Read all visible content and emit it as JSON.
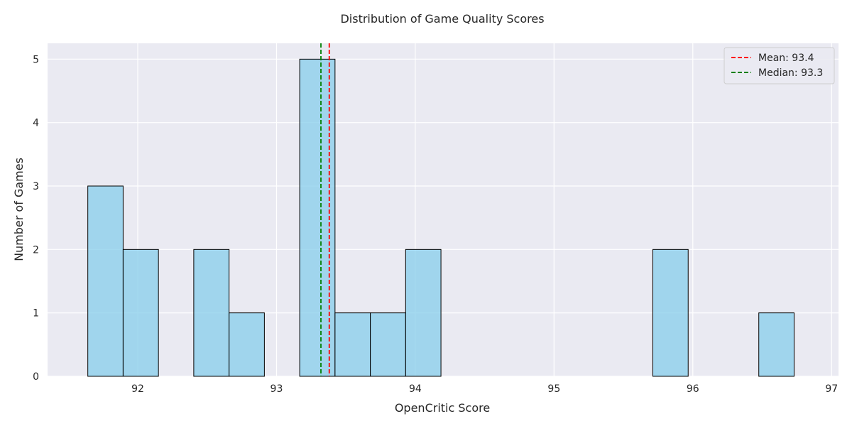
{
  "chart_data": {
    "type": "bar",
    "title": "Distribution of Game Quality Scores",
    "xlabel": "OpenCritic Score",
    "ylabel": "Number of Games",
    "xlim": [
      91.35,
      97.05
    ],
    "ylim": [
      0,
      5.25
    ],
    "xticks": [
      92,
      93,
      94,
      95,
      96,
      97
    ],
    "yticks": [
      0,
      1,
      2,
      3,
      4,
      5
    ],
    "grid": true,
    "legend_position": "top-right",
    "bin_width": 0.2545,
    "bars": [
      {
        "x0": 91.64,
        "count": 3
      },
      {
        "x0": 91.8945,
        "count": 2
      },
      {
        "x0": 92.149,
        "count": 0
      },
      {
        "x0": 92.4035,
        "count": 2
      },
      {
        "x0": 92.658,
        "count": 1
      },
      {
        "x0": 92.9125,
        "count": 0
      },
      {
        "x0": 93.167,
        "count": 5
      },
      {
        "x0": 93.4215,
        "count": 1
      },
      {
        "x0": 93.676,
        "count": 1
      },
      {
        "x0": 93.9305,
        "count": 2
      },
      {
        "x0": 94.185,
        "count": 0
      },
      {
        "x0": 94.4395,
        "count": 0
      },
      {
        "x0": 94.694,
        "count": 0
      },
      {
        "x0": 94.9485,
        "count": 0
      },
      {
        "x0": 95.203,
        "count": 0
      },
      {
        "x0": 95.4575,
        "count": 0
      },
      {
        "x0": 95.712,
        "count": 2
      },
      {
        "x0": 95.9665,
        "count": 0
      },
      {
        "x0": 96.221,
        "count": 0
      },
      {
        "x0": 96.4755,
        "count": 1
      }
    ],
    "reference_lines": [
      {
        "label": "Mean: 93.4",
        "value": 93.38,
        "color": "#ff0000"
      },
      {
        "label": "Median: 93.3",
        "value": 93.32,
        "color": "#008000"
      }
    ],
    "bar_color": "#87ceeb",
    "bar_edge_color": "#000000",
    "background_color": "#eaeaf2"
  }
}
